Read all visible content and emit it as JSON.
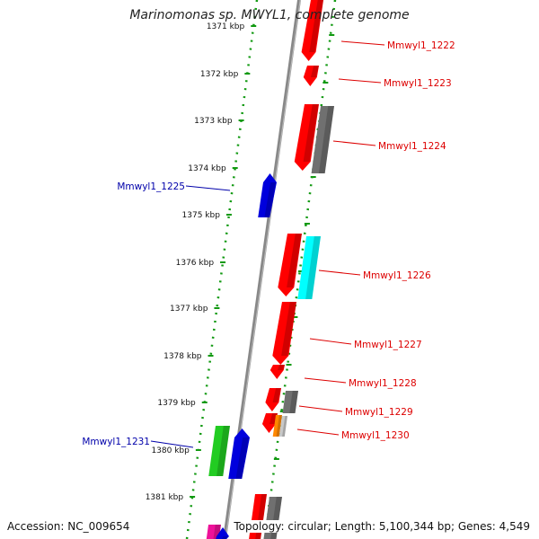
{
  "title": "Marinomonas sp. MWYL1, complete genome",
  "footer": {
    "accession": "Accession: NC_009654",
    "summary": "Topology: circular; Length: 5,100,344 bp; Genes: 4,549"
  },
  "ruler": {
    "ticks": [
      "1371 kbp",
      "1372 kbp",
      "1373 kbp",
      "1374 kbp",
      "1375 kbp",
      "1376 kbp",
      "1377 kbp",
      "1378 kbp",
      "1379 kbp",
      "1380 kbp",
      "1381 kbp"
    ]
  },
  "colors": {
    "red": "#ff0000",
    "gray": "#707070",
    "blue": "#0000dd",
    "cyan": "#00ffff",
    "green": "#22cc22",
    "orange": "#ff8800",
    "magenta": "#ee1199",
    "light_gray": "#c8c8c8",
    "backbone": "#888888",
    "track": "#119911",
    "label_right": "#dd0000",
    "label_left": "#0000aa"
  },
  "genes": [
    {
      "label": "Mmwyl1_1222",
      "side": "right",
      "color": "red"
    },
    {
      "label": "Mmwyl1_1223",
      "side": "right",
      "color": "red"
    },
    {
      "label": "Mmwyl1_1224",
      "side": "right",
      "color": "red"
    },
    {
      "label": "Mmwyl1_1225",
      "side": "left",
      "color": "blue"
    },
    {
      "label": "Mmwyl1_1226",
      "side": "right",
      "color": "red"
    },
    {
      "label": "Mmwyl1_1227",
      "side": "right",
      "color": "red"
    },
    {
      "label": "Mmwyl1_1228",
      "side": "right",
      "color": "red"
    },
    {
      "label": "Mmwyl1_1229",
      "side": "right",
      "color": "red"
    },
    {
      "label": "Mmwyl1_1230",
      "side": "right",
      "color": "red"
    },
    {
      "label": "Mmwyl1_1231",
      "side": "left",
      "color": "green"
    }
  ]
}
